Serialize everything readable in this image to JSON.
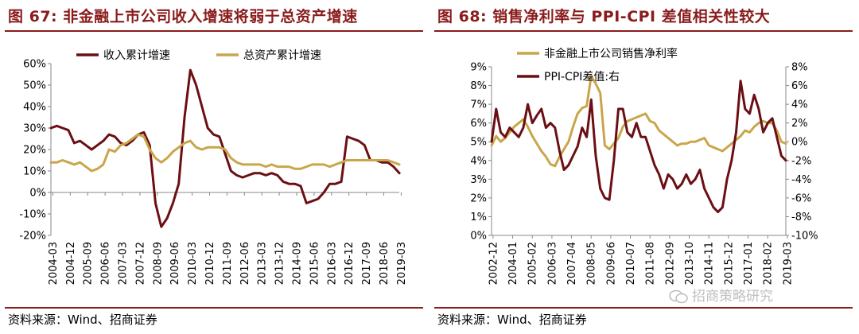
{
  "panels": {
    "left": {
      "title": "图 67: 非金融上市公司收入增速将弱于总资产增速",
      "source": "资料来源：Wind、招商证券"
    },
    "right": {
      "title": "图 68: 销售净利率与 PPI-CPI 差值相关性较大",
      "source": "资料来源：Wind、招商证券"
    }
  },
  "watermark": "招商策略研究",
  "colors": {
    "darkred": "#6b0f14",
    "gold": "#c9a64a",
    "accent": "#8a1c1c"
  },
  "chart_data": [
    {
      "type": "line",
      "title": "",
      "xlabel": "",
      "ylabel": "",
      "ylim": [
        -20,
        60
      ],
      "yticks": [
        "60%",
        "50%",
        "40%",
        "30%",
        "20%",
        "10%",
        "0%",
        "-10%",
        "-20%"
      ],
      "xlim": [
        2004.167,
        2019.167
      ],
      "xticks": [
        "2004-03",
        "2004-12",
        "2005-09",
        "2006-06",
        "2007-03",
        "2007-12",
        "2008-09",
        "2009-06",
        "2010-03",
        "2010-12",
        "2011-09",
        "2012-06",
        "2013-03",
        "2013-12",
        "2014-09",
        "2015-06",
        "2016-03",
        "2016-12",
        "2017-09",
        "2018-06",
        "2019-03"
      ],
      "grid": false,
      "legend": "top",
      "series": [
        {
          "name": "收入累计增速",
          "color": "#6b0f14",
          "x": [
            2004.17,
            2004.42,
            2004.67,
            2004.92,
            2005.17,
            2005.42,
            2005.67,
            2005.92,
            2006.17,
            2006.42,
            2006.67,
            2006.92,
            2007.17,
            2007.42,
            2007.67,
            2007.92,
            2008.17,
            2008.42,
            2008.67,
            2008.92,
            2009.17,
            2009.42,
            2009.67,
            2009.92,
            2010.17,
            2010.42,
            2010.67,
            2010.92,
            2011.17,
            2011.42,
            2011.67,
            2011.92,
            2012.17,
            2012.42,
            2012.67,
            2012.92,
            2013.17,
            2013.42,
            2013.67,
            2013.92,
            2014.17,
            2014.42,
            2014.67,
            2014.92,
            2015.17,
            2015.42,
            2015.67,
            2015.92,
            2016.17,
            2016.42,
            2016.67,
            2016.92,
            2017.17,
            2017.42,
            2017.67,
            2017.92,
            2018.17,
            2018.42,
            2018.67,
            2018.92,
            2019.17
          ],
          "values": [
            30,
            31,
            30,
            29,
            23,
            24,
            22,
            20,
            22,
            24,
            27,
            26,
            23,
            22,
            24,
            27,
            28,
            22,
            -5,
            -16,
            -12,
            -5,
            4,
            35,
            57,
            50,
            40,
            30,
            27,
            26,
            18,
            10,
            8,
            7,
            8,
            9,
            9,
            8,
            9,
            8,
            5,
            4,
            4,
            3,
            -5,
            -4,
            -3,
            0,
            4,
            4,
            5,
            26,
            25,
            24,
            22,
            15,
            15,
            14,
            14,
            12,
            9
          ]
        },
        {
          "name": "总资产累计增速",
          "color": "#c9a64a",
          "x": [
            2004.17,
            2004.42,
            2004.67,
            2004.92,
            2005.17,
            2005.42,
            2005.67,
            2005.92,
            2006.17,
            2006.42,
            2006.67,
            2006.92,
            2007.17,
            2007.42,
            2007.67,
            2007.92,
            2008.17,
            2008.42,
            2008.67,
            2008.92,
            2009.17,
            2009.42,
            2009.67,
            2009.92,
            2010.17,
            2010.42,
            2010.67,
            2010.92,
            2011.17,
            2011.42,
            2011.67,
            2011.92,
            2012.17,
            2012.42,
            2012.67,
            2012.92,
            2013.17,
            2013.42,
            2013.67,
            2013.92,
            2014.17,
            2014.42,
            2014.67,
            2014.92,
            2015.17,
            2015.42,
            2015.67,
            2015.92,
            2016.17,
            2016.42,
            2016.67,
            2016.92,
            2017.17,
            2017.42,
            2017.67,
            2017.92,
            2018.17,
            2018.42,
            2018.67,
            2018.92,
            2019.17
          ],
          "values": [
            14,
            14,
            15,
            14,
            13,
            14,
            12,
            10,
            11,
            13,
            20,
            19,
            22,
            23,
            25,
            27,
            26,
            20,
            16,
            14,
            16,
            19,
            21,
            23,
            24,
            21,
            20,
            21,
            21,
            21,
            20,
            16,
            14,
            13,
            13,
            13,
            13,
            12,
            13,
            12,
            12,
            12,
            11,
            11,
            12,
            13,
            13,
            13,
            12,
            13,
            14,
            15,
            15,
            15,
            15,
            15,
            15,
            15,
            15,
            14,
            13
          ]
        }
      ]
    },
    {
      "type": "line",
      "title": "",
      "xlabel": "",
      "ylabel": "",
      "ylim": [
        0,
        9
      ],
      "y2lim": [
        -10,
        8
      ],
      "yticks": [
        "9%",
        "8%",
        "7%",
        "6%",
        "5%",
        "4%",
        "3%",
        "2%",
        "1%",
        "0%"
      ],
      "y2ticks": [
        "8%",
        "6%",
        "4%",
        "2%",
        "0%",
        "-2%",
        "-4%",
        "-6%",
        "-8%",
        "-10%"
      ],
      "xlim": [
        2002.917,
        2019.167
      ],
      "xticks": [
        "2002-12",
        "2004-01",
        "2005-02",
        "2006-03",
        "2007-04",
        "2008-05",
        "2009-06",
        "2010-07",
        "2011-08",
        "2012-09",
        "2013-10",
        "2014-11",
        "2015-12",
        "2017-01",
        "2018-02",
        "2019-03"
      ],
      "grid": false,
      "legend": "top-left",
      "series": [
        {
          "name": "非金融上市公司销售净利率",
          "axis": "left",
          "color": "#c9a64a",
          "x": [
            2002.92,
            2003.17,
            2003.42,
            2003.67,
            2003.92,
            2004.17,
            2004.42,
            2004.67,
            2004.92,
            2005.17,
            2005.42,
            2005.67,
            2005.92,
            2006.17,
            2006.42,
            2006.67,
            2006.92,
            2007.17,
            2007.42,
            2007.67,
            2007.92,
            2008.17,
            2008.42,
            2008.67,
            2008.92,
            2009.17,
            2009.42,
            2009.67,
            2009.92,
            2010.17,
            2010.42,
            2010.67,
            2010.92,
            2011.17,
            2011.42,
            2011.67,
            2011.92,
            2012.17,
            2012.42,
            2012.67,
            2012.92,
            2013.17,
            2013.42,
            2013.67,
            2013.92,
            2014.17,
            2014.42,
            2014.67,
            2014.92,
            2015.17,
            2015.42,
            2015.67,
            2015.92,
            2016.17,
            2016.42,
            2016.67,
            2016.92,
            2017.17,
            2017.42,
            2017.67,
            2017.92,
            2018.17,
            2018.42,
            2018.67,
            2018.92,
            2019.17
          ],
          "values": [
            4.8,
            5.3,
            5.0,
            5.2,
            5.5,
            5.8,
            6.0,
            6.2,
            5.8,
            5.3,
            4.9,
            4.5,
            4.2,
            3.8,
            3.7,
            4.2,
            4.6,
            5.0,
            5.8,
            6.5,
            6.8,
            6.9,
            8.5,
            8.1,
            7.6,
            4.8,
            4.6,
            4.9,
            5.2,
            5.8,
            6.1,
            6.2,
            6.3,
            6.4,
            6.5,
            6.1,
            6.0,
            5.6,
            5.4,
            5.2,
            5.0,
            4.8,
            4.9,
            4.9,
            5.0,
            5.0,
            5.1,
            5.2,
            4.8,
            4.7,
            4.6,
            4.5,
            4.7,
            4.9,
            5.1,
            5.3,
            5.6,
            5.5,
            5.8,
            6.0,
            6.1,
            6.0,
            6.0,
            5.6,
            5.0,
            4.9
          ]
        },
        {
          "name": "PPI-CPI差值:右",
          "axis": "right",
          "color": "#6b0f14",
          "x": [
            2002.92,
            2003.17,
            2003.42,
            2003.67,
            2003.92,
            2004.17,
            2004.42,
            2004.67,
            2004.92,
            2005.17,
            2005.42,
            2005.67,
            2005.92,
            2006.17,
            2006.42,
            2006.67,
            2006.92,
            2007.17,
            2007.42,
            2007.67,
            2007.92,
            2008.17,
            2008.42,
            2008.67,
            2008.92,
            2009.17,
            2009.42,
            2009.67,
            2009.92,
            2010.17,
            2010.42,
            2010.67,
            2010.92,
            2011.17,
            2011.42,
            2011.67,
            2011.92,
            2012.17,
            2012.42,
            2012.67,
            2012.92,
            2013.17,
            2013.42,
            2013.67,
            2013.92,
            2014.17,
            2014.42,
            2014.67,
            2014.92,
            2015.17,
            2015.42,
            2015.67,
            2015.92,
            2016.17,
            2016.42,
            2016.67,
            2016.92,
            2017.17,
            2017.42,
            2017.67,
            2017.92,
            2018.17,
            2018.42,
            2018.67,
            2018.92,
            2019.17
          ],
          "values": [
            0.0,
            3.5,
            1.0,
            0.5,
            1.5,
            1.0,
            0.5,
            1.5,
            4.0,
            2.0,
            2.8,
            3.5,
            1.5,
            2.0,
            1.5,
            -1.0,
            -3.0,
            -2.5,
            -1.5,
            -0.5,
            1.5,
            0.5,
            4.5,
            -1.5,
            -5.0,
            -6.0,
            -6.2,
            -2.0,
            3.5,
            3.5,
            1.0,
            0.5,
            2.0,
            0.5,
            0.5,
            -1.0,
            -2.5,
            -3.5,
            -5.0,
            -3.5,
            -4.0,
            -5.0,
            -4.5,
            -3.5,
            -4.5,
            -4.0,
            -3.0,
            -5.0,
            -6.0,
            -7.0,
            -7.5,
            -7.0,
            -4.0,
            -2.0,
            1.0,
            6.5,
            3.5,
            3.0,
            5.0,
            3.5,
            1.0,
            2.0,
            2.5,
            0.5,
            -1.5,
            -2.0
          ]
        }
      ]
    }
  ]
}
